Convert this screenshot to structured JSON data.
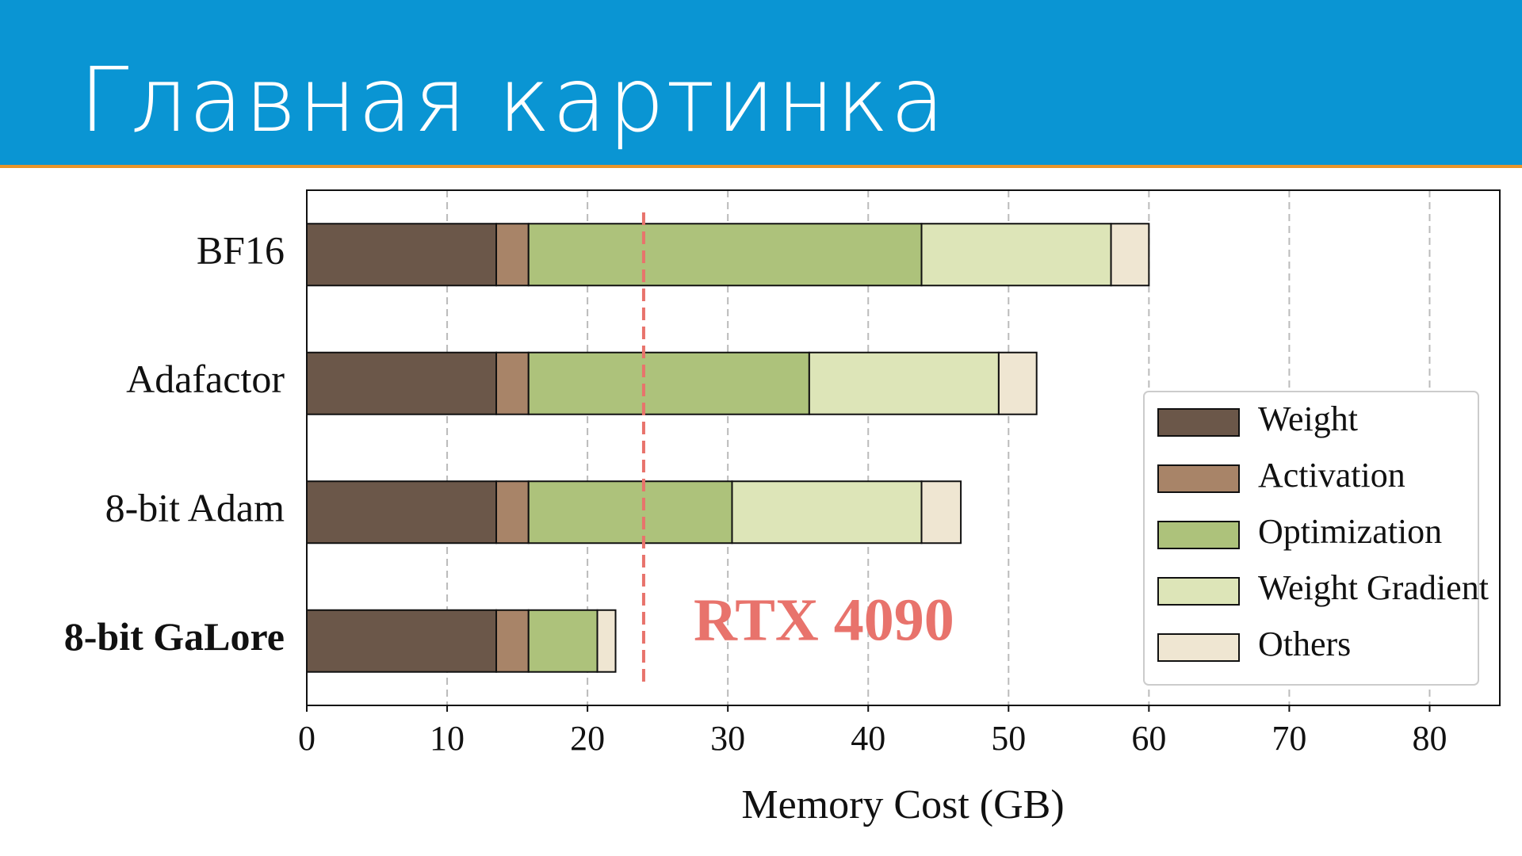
{
  "slide": {
    "title": "Главная картинка"
  },
  "chart_data": {
    "type": "stacked_barh",
    "xlabel": "Memory Cost (GB)",
    "categories": [
      "BF16",
      "Adafactor",
      "8-bit Adam",
      "8-bit GaLore"
    ],
    "series": [
      {
        "name": "Weight",
        "color": "#6b5749",
        "values": [
          13.5,
          13.5,
          13.5,
          13.5
        ]
      },
      {
        "name": "Activation",
        "color": "#a88468",
        "values": [
          2.3,
          2.3,
          2.3,
          2.3
        ]
      },
      {
        "name": "Optimization",
        "color": "#adc27b",
        "values": [
          28,
          20,
          14.5,
          4.9
        ]
      },
      {
        "name": "Weight Gradient",
        "color": "#dde5b8",
        "values": [
          13.5,
          13.5,
          13.5,
          0
        ]
      },
      {
        "name": "Others",
        "color": "#efe6d2",
        "values": [
          2.7,
          2.7,
          2.8,
          1.3
        ]
      }
    ],
    "xlim": [
      0,
      85
    ],
    "xticks": [
      0,
      10,
      20,
      30,
      40,
      50,
      60,
      70,
      80
    ],
    "grid": true,
    "legend": "lower right",
    "vline": {
      "value": 24,
      "label": "RTX 4090",
      "color": "#e8736c"
    }
  }
}
